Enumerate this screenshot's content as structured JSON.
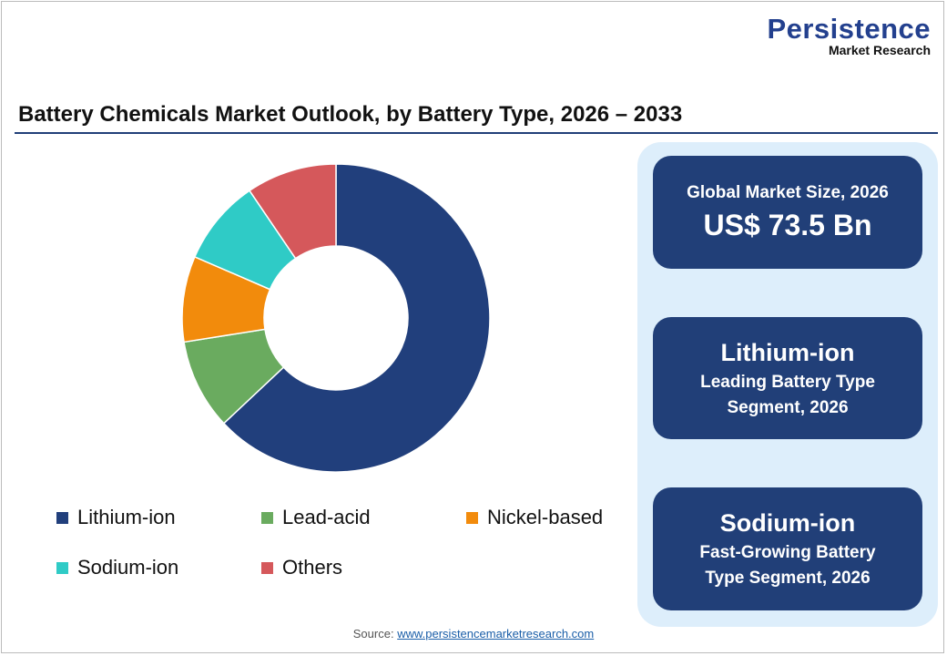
{
  "logo": {
    "line1": "Persistence",
    "line2": "Market Research"
  },
  "chart_data": {
    "type": "pie",
    "title": "Battery Chemicals Market Outlook, by Battery Type, 2026 – 2033",
    "donut": true,
    "categories": [
      "Lithium-ion",
      "Lead-acid",
      "Nickel-based",
      "Sodium-ion",
      "Others"
    ],
    "values": [
      63,
      9.5,
      9,
      9,
      9.5
    ],
    "colors": [
      "#213f7c",
      "#6aab5f",
      "#f28b0c",
      "#2fcbc6",
      "#d5585b"
    ],
    "legend_placement": "bottom"
  },
  "cards": [
    {
      "line1": "Global Market Size, 2026",
      "line2": "US$ 73.5 Bn"
    },
    {
      "line1": "Lithium-ion",
      "line2": "Leading Battery Type",
      "line3": "Segment, 2026"
    },
    {
      "line1": "Sodium-ion",
      "line2": "Fast-Growing Battery",
      "line3": "Type Segment, 2026"
    }
  ],
  "source": {
    "label": "Source:",
    "link": "www.persistencemarketresearch.com"
  }
}
